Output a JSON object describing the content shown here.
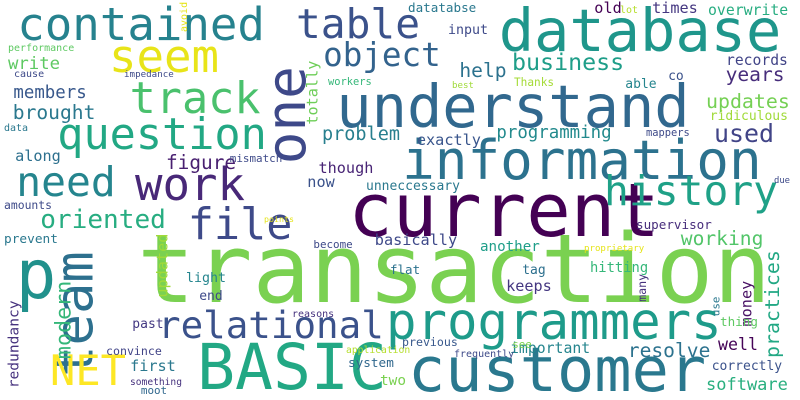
{
  "words": [
    {
      "text": "transaction",
      "color": "#7ad151"
    },
    {
      "text": "customer",
      "color": "#2a788e"
    },
    {
      "text": "current",
      "color": "#440154"
    },
    {
      "text": "database",
      "color": "#1f968b"
    },
    {
      "text": "understand",
      "color": "#31688e"
    },
    {
      "text": "information",
      "color": "#2c728e"
    },
    {
      "text": "BASIC",
      "color": "#22a884"
    },
    {
      "text": "one",
      "color": "#3e4989"
    },
    {
      "text": "programmers",
      "color": "#1e9b8a"
    },
    {
      "text": "contained",
      "color": "#26828e"
    },
    {
      "text": "table",
      "color": "#3b528b"
    },
    {
      "text": "seem",
      "color": "#e8e419"
    },
    {
      "text": "work",
      "color": "#482878"
    },
    {
      "text": "history",
      "color": "#1fa187"
    },
    {
      "text": "relational",
      "color": "#3b528b"
    },
    {
      "text": "track",
      "color": "#4ac16d"
    },
    {
      "text": "question",
      "color": "#22a884"
    },
    {
      "text": "need",
      "color": "#25858e"
    },
    {
      "text": "file",
      "color": "#3e4a89"
    },
    {
      "text": "team",
      "color": "#2d708e"
    },
    {
      "text": "p",
      "color": "#21918c"
    },
    {
      "text": "NET",
      "color": "#fde725"
    },
    {
      "text": "object",
      "color": "#33638d"
    },
    {
      "text": "business",
      "color": "#1f9e89"
    },
    {
      "text": "used",
      "color": "#414487"
    },
    {
      "text": "updates",
      "color": "#75d054"
    },
    {
      "text": "years",
      "color": "#472d7b"
    },
    {
      "text": "practices",
      "color": "#22a884"
    },
    {
      "text": "software",
      "color": "#29af7f"
    },
    {
      "text": "write",
      "color": "#5ec962"
    },
    {
      "text": "members",
      "color": "#38588c"
    },
    {
      "text": "brought",
      "color": "#2a788e"
    },
    {
      "text": "oriented",
      "color": "#27ad81"
    },
    {
      "text": "figure",
      "color": "#481f70"
    },
    {
      "text": "working",
      "color": "#52c569"
    },
    {
      "text": "modern",
      "color": "#35b779"
    },
    {
      "text": "programming",
      "color": "#238a8d"
    },
    {
      "text": "problem",
      "color": "#277f8e"
    },
    {
      "text": "help",
      "color": "#2c728e"
    },
    {
      "text": "resolve",
      "color": "#2c728e"
    },
    {
      "text": "well",
      "color": "#450457"
    },
    {
      "text": "though",
      "color": "#482475"
    },
    {
      "text": "now",
      "color": "#3b528b"
    },
    {
      "text": "exactly",
      "color": "#39558c"
    },
    {
      "text": "ridiculous",
      "color": "#a0da39"
    },
    {
      "text": "records",
      "color": "#414487"
    },
    {
      "text": "times",
      "color": "#453781"
    },
    {
      "text": "overwrite",
      "color": "#27ad81"
    },
    {
      "text": "datatabse",
      "color": "#2a788e"
    },
    {
      "text": "input",
      "color": "#3e4a89"
    },
    {
      "text": "old",
      "color": "#440154"
    },
    {
      "text": "able",
      "color": "#25858e"
    },
    {
      "text": "co",
      "color": "#3b528b"
    },
    {
      "text": "Thanks",
      "color": "#a5db36"
    },
    {
      "text": "workers",
      "color": "#35b779"
    },
    {
      "text": "totally",
      "color": "#6ece58"
    },
    {
      "text": "along",
      "color": "#2d708e"
    },
    {
      "text": "prevent",
      "color": "#2a788e"
    },
    {
      "text": "amounts",
      "color": "#3e4a89"
    },
    {
      "text": "redundancy",
      "color": "#46327e"
    },
    {
      "text": "convince",
      "color": "#414487"
    },
    {
      "text": "first",
      "color": "#2a788e"
    },
    {
      "text": "past",
      "color": "#443983"
    },
    {
      "text": "updated",
      "color": "#a0da39"
    },
    {
      "text": "light",
      "color": "#25858e"
    },
    {
      "text": "end",
      "color": "#3e4a89"
    },
    {
      "text": "flat",
      "color": "#2c728e"
    },
    {
      "text": "tag",
      "color": "#2d708e"
    },
    {
      "text": "keeps",
      "color": "#453781"
    },
    {
      "text": "hitting",
      "color": "#35b779"
    },
    {
      "text": "many",
      "color": "#46327e"
    },
    {
      "text": "money",
      "color": "#471063"
    },
    {
      "text": "thing",
      "color": "#5ec962"
    },
    {
      "text": "correctly",
      "color": "#3b528b"
    },
    {
      "text": "supervisor",
      "color": "#472d7b"
    },
    {
      "text": "another",
      "color": "#1f9e89"
    },
    {
      "text": "basically",
      "color": "#3e4989"
    },
    {
      "text": "system",
      "color": "#31688e"
    },
    {
      "text": "previous",
      "color": "#38588c"
    },
    {
      "text": "important",
      "color": "#25858e"
    },
    {
      "text": "two",
      "color": "#7ad151"
    },
    {
      "text": "see",
      "color": "#7ad151"
    },
    {
      "text": "unneccessary",
      "color": "#2a788e"
    },
    {
      "text": "frequently",
      "color": "#3e4a89"
    },
    {
      "text": "application",
      "color": "#b5de2b"
    },
    {
      "text": "something",
      "color": "#46327e"
    },
    {
      "text": "moot",
      "color": "#31688e"
    },
    {
      "text": "become",
      "color": "#3e4a89"
    },
    {
      "text": "reasons",
      "color": "#46327e"
    },
    {
      "text": "proprietary",
      "color": "#e5e419"
    },
    {
      "text": "use",
      "color": "#2a788e"
    },
    {
      "text": "due",
      "color": "#3e4a89"
    },
    {
      "text": "mappers",
      "color": "#3e4a89"
    },
    {
      "text": "mismatch",
      "color": "#3e4a89"
    },
    {
      "text": "impedance",
      "color": "#3e4a89"
    },
    {
      "text": "performance",
      "color": "#5ec962"
    },
    {
      "text": "cause",
      "color": "#3e4a89"
    },
    {
      "text": "data",
      "color": "#2a788e"
    },
    {
      "text": "points",
      "color": "#e5e419"
    },
    {
      "text": "avoid",
      "color": "#e5e419"
    },
    {
      "text": "lot",
      "color": "#b5de2b"
    },
    {
      "text": "best",
      "color": "#a0da39"
    }
  ]
}
